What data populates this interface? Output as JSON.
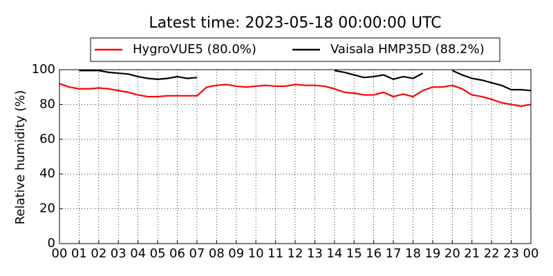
{
  "chart_data": {
    "type": "line",
    "title": "Latest time: 2023-05-18 00:00:00 UTC",
    "y_label": "Relative humidity (%)",
    "x": [
      0,
      0.5,
      1,
      1.5,
      2,
      2.5,
      3,
      3.5,
      4,
      4.5,
      5,
      5.5,
      6,
      6.5,
      7,
      7.5,
      8,
      8.5,
      9,
      9.5,
      10,
      10.5,
      11,
      11.5,
      12,
      12.5,
      13,
      13.5,
      14,
      14.5,
      15,
      15.5,
      16,
      16.5,
      17,
      17.5,
      18,
      18.5,
      19,
      19.5,
      20,
      20.5,
      21,
      21.5,
      22,
      22.5,
      23,
      23.5,
      24
    ],
    "series": [
      {
        "name": "HygroVUE5 (80.0%)",
        "color": "#ff0000",
        "values": [
          92,
          90,
          89,
          89,
          89.5,
          89,
          88,
          87,
          85.5,
          84.5,
          84.5,
          85,
          85,
          85,
          85,
          90,
          91,
          91.5,
          90.5,
          90,
          90.5,
          91,
          90.5,
          90.5,
          91.5,
          91,
          91,
          90.5,
          89,
          87,
          86.5,
          85.5,
          85.5,
          87,
          84.5,
          86,
          84.5,
          88,
          90,
          90,
          91,
          89,
          85.5,
          84.5,
          83,
          81,
          80,
          79,
          80
        ]
      },
      {
        "name": "Vaisala HMP35D (88.2%)",
        "color": "#000000",
        "values": [
          null,
          null,
          99.5,
          99.5,
          99.5,
          98.5,
          98,
          97.5,
          96,
          95,
          94.5,
          95,
          96,
          95,
          95.5,
          null,
          null,
          null,
          null,
          null,
          null,
          null,
          null,
          null,
          null,
          null,
          null,
          null,
          99.5,
          98.5,
          97,
          95.5,
          96,
          97,
          94.5,
          96,
          95,
          98,
          null,
          null,
          99.5,
          97,
          95,
          94,
          92.5,
          91,
          88.5,
          88.5,
          88
        ]
      }
    ],
    "xlim": [
      0,
      24
    ],
    "xticks": [
      {
        "value": 0,
        "label": "00"
      },
      {
        "value": 1,
        "label": "01"
      },
      {
        "value": 2,
        "label": "02"
      },
      {
        "value": 3,
        "label": "03"
      },
      {
        "value": 4,
        "label": "04"
      },
      {
        "value": 5,
        "label": "05"
      },
      {
        "value": 6,
        "label": "06"
      },
      {
        "value": 7,
        "label": "07"
      },
      {
        "value": 8,
        "label": "08"
      },
      {
        "value": 9,
        "label": "09"
      },
      10,
      11,
      12,
      13,
      14,
      15,
      16,
      17,
      18,
      19,
      20,
      21,
      22,
      23,
      {
        "value": 24,
        "label": "00"
      }
    ],
    "ylim": [
      0,
      100
    ],
    "yticks": [
      0,
      20,
      40,
      60,
      80,
      100
    ],
    "grid": true
  }
}
